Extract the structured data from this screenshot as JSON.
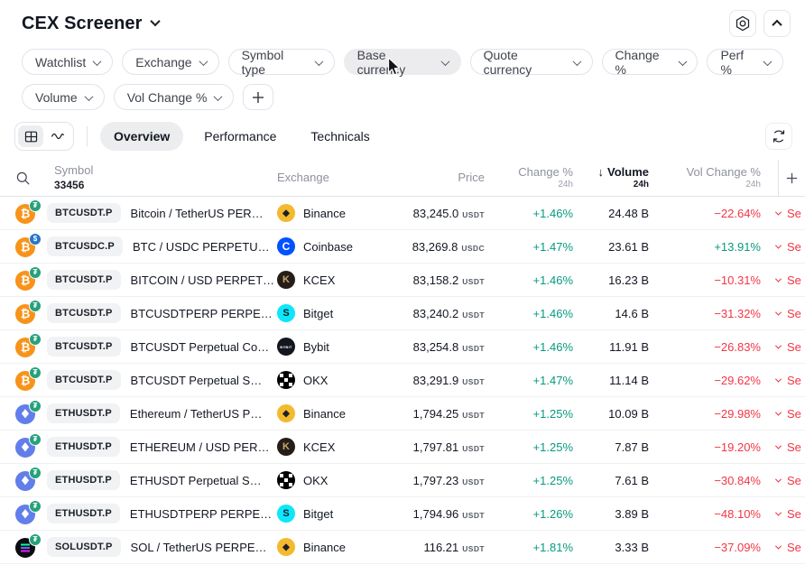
{
  "header": {
    "title": "CEX Screener",
    "settings_icon": "settings-hexagon-icon",
    "collapse_icon": "chevron-up-icon"
  },
  "filters": {
    "rows": [
      [
        {
          "label": "Watchlist",
          "hovered": false
        },
        {
          "label": "Exchange",
          "hovered": false
        },
        {
          "label": "Symbol type",
          "hovered": false
        },
        {
          "label": "Base currency",
          "hovered": true
        },
        {
          "label": "Quote currency",
          "hovered": false
        },
        {
          "label": "Change %",
          "hovered": false
        },
        {
          "label": "Perf %",
          "hovered": false
        }
      ],
      [
        {
          "label": "Volume",
          "hovered": false
        },
        {
          "label": "Vol Change %",
          "hovered": false
        }
      ]
    ],
    "add_filter_icon": "plus-icon"
  },
  "tabs": {
    "items": [
      {
        "label": "Overview",
        "active": true
      },
      {
        "label": "Performance",
        "active": false
      },
      {
        "label": "Technicals",
        "active": false
      }
    ]
  },
  "table": {
    "columns": {
      "symbol": "Symbol",
      "symbol_count": "33456",
      "exchange": "Exchange",
      "price": "Price",
      "change": "Change %",
      "volume": "Volume",
      "vol_change": "Vol Change %",
      "period_sub": "24h",
      "sort_arrow": "↓"
    },
    "action_label": "Se",
    "rows": [
      {
        "ticker": "BTCUSDT.P",
        "name": "Bitcoin / TetherUS PER…",
        "coin": "btc",
        "badge": "usdt",
        "exchange": "Binance",
        "exchange_icon": "binance",
        "price": "83,245.0",
        "unit": "USDT",
        "change": "+1.46%",
        "volume": "24.48 B",
        "vol_change": "−22.64%"
      },
      {
        "ticker": "BTCUSDC.P",
        "name": "BTC / USDC PERPETU…",
        "coin": "btc",
        "badge": "usdc",
        "exchange": "Coinbase",
        "exchange_icon": "coinbase",
        "price": "83,269.8",
        "unit": "USDC",
        "change": "+1.47%",
        "volume": "23.61 B",
        "vol_change": "+13.91%"
      },
      {
        "ticker": "BTCUSDT.P",
        "name": "BITCOIN / USD PERPET…",
        "coin": "btc",
        "badge": "usdt",
        "exchange": "KCEX",
        "exchange_icon": "kcex",
        "price": "83,158.2",
        "unit": "USDT",
        "change": "+1.46%",
        "volume": "16.23 B",
        "vol_change": "−10.31%"
      },
      {
        "ticker": "BTCUSDT.P",
        "name": "BTCUSDTPERP PERPE…",
        "coin": "btc",
        "badge": "usdt",
        "exchange": "Bitget",
        "exchange_icon": "bitget",
        "price": "83,240.2",
        "unit": "USDT",
        "change": "+1.46%",
        "volume": "14.6 B",
        "vol_change": "−31.32%"
      },
      {
        "ticker": "BTCUSDT.P",
        "name": "BTCUSDT Perpetual Co…",
        "coin": "btc",
        "badge": "usdt",
        "exchange": "Bybit",
        "exchange_icon": "bybit",
        "price": "83,254.8",
        "unit": "USDT",
        "change": "+1.46%",
        "volume": "11.91 B",
        "vol_change": "−26.83%"
      },
      {
        "ticker": "BTCUSDT.P",
        "name": "BTCUSDT Perpetual S…",
        "coin": "btc",
        "badge": "usdt",
        "exchange": "OKX",
        "exchange_icon": "okx",
        "price": "83,291.9",
        "unit": "USDT",
        "change": "+1.47%",
        "volume": "11.14 B",
        "vol_change": "−29.62%"
      },
      {
        "ticker": "ETHUSDT.P",
        "name": "Ethereum / TetherUS P…",
        "coin": "eth",
        "badge": "usdt",
        "exchange": "Binance",
        "exchange_icon": "binance",
        "price": "1,794.25",
        "unit": "USDT",
        "change": "+1.25%",
        "volume": "10.09 B",
        "vol_change": "−29.98%"
      },
      {
        "ticker": "ETHUSDT.P",
        "name": "ETHEREUM / USD PER…",
        "coin": "eth",
        "badge": "usdt",
        "exchange": "KCEX",
        "exchange_icon": "kcex",
        "price": "1,797.81",
        "unit": "USDT",
        "change": "+1.25%",
        "volume": "7.87 B",
        "vol_change": "−19.20%"
      },
      {
        "ticker": "ETHUSDT.P",
        "name": "ETHUSDT Perpetual S…",
        "coin": "eth",
        "badge": "usdt",
        "exchange": "OKX",
        "exchange_icon": "okx",
        "price": "1,797.23",
        "unit": "USDT",
        "change": "+1.25%",
        "volume": "7.61 B",
        "vol_change": "−30.84%"
      },
      {
        "ticker": "ETHUSDT.P",
        "name": "ETHUSDTPERP PERPE…",
        "coin": "eth",
        "badge": "usdt",
        "exchange": "Bitget",
        "exchange_icon": "bitget",
        "price": "1,794.96",
        "unit": "USDT",
        "change": "+1.26%",
        "volume": "3.89 B",
        "vol_change": "−48.10%"
      },
      {
        "ticker": "SOLUSDT.P",
        "name": "SOL / TetherUS PERPE…",
        "coin": "sol",
        "badge": "usdt",
        "exchange": "Binance",
        "exchange_icon": "binance",
        "price": "116.21",
        "unit": "USDT",
        "change": "+1.81%",
        "volume": "3.33 B",
        "vol_change": "−37.09%"
      }
    ]
  },
  "icons": {
    "binance": {
      "glyph": "◆",
      "bg": "#F3BA2F",
      "fg": "#1E2026"
    },
    "coinbase": {
      "glyph": "C",
      "bg": "#0052FF",
      "fg": "#FFFFFF"
    },
    "kcex": {
      "glyph": "K",
      "bg": "#251E18",
      "fg": "#C9A571"
    },
    "bitget": {
      "glyph": "S",
      "bg": "#0FE6FB",
      "fg": "#04252B"
    },
    "bybit": {
      "glyph": "BYBIT",
      "bg": "#14161F",
      "fg": "#FFFFFF"
    },
    "okx": {
      "glyph": "",
      "bg": "#000000",
      "fg": "#FFFFFF"
    },
    "btc": {
      "glyph": "₿",
      "bg": "#F7931A",
      "fg": "#FFFFFF"
    },
    "eth": {
      "glyph": "◆",
      "bg": "#627EEA",
      "fg": "#FFFFFF"
    },
    "sol": {
      "glyph": "",
      "bg": "#0C0D10",
      "fg": "#FFFFFF"
    },
    "usdt_badge": {
      "glyph": "₮",
      "bg": "#26A17B",
      "fg": "#FFFFFF"
    },
    "usdc_badge": {
      "glyph": "$",
      "bg": "#2775CA",
      "fg": "#FFFFFF"
    }
  },
  "colors": {
    "up": "#089981",
    "down": "#F23645"
  }
}
